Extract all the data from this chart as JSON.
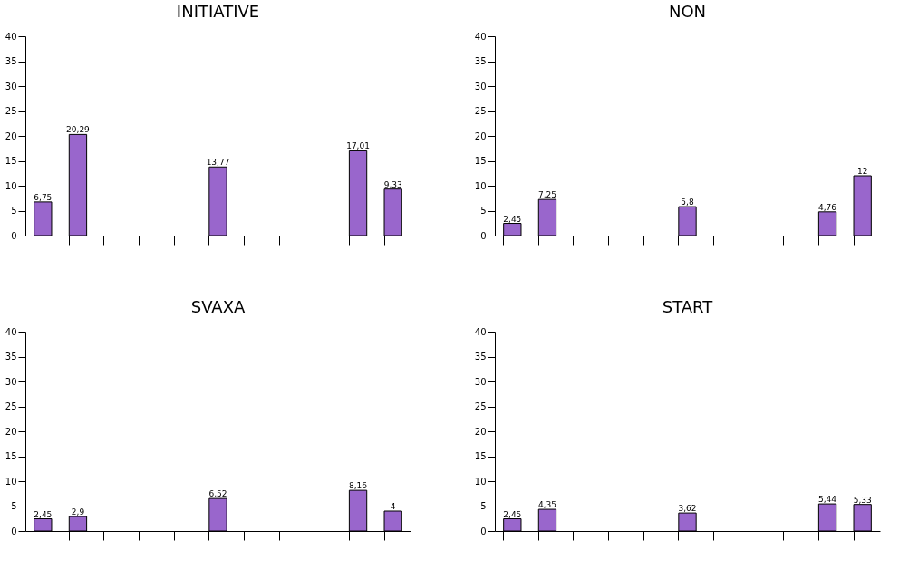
{
  "chart_data": [
    {
      "type": "bar",
      "title": "INITIATIVE",
      "categories": [
        null,
        null,
        null,
        null,
        null,
        null,
        null,
        null,
        null,
        null,
        null
      ],
      "values": [
        6.75,
        20.29,
        null,
        null,
        null,
        13.77,
        null,
        null,
        null,
        17.01,
        9.33
      ],
      "value_labels": [
        "6,75",
        "20,29",
        null,
        null,
        null,
        "13,77",
        null,
        null,
        null,
        "17,01",
        "9,33"
      ],
      "color": "#9966cc",
      "ylim": [
        0,
        40
      ],
      "yticks": [
        0,
        5,
        10,
        15,
        20,
        25,
        30,
        35,
        40
      ],
      "grid": false,
      "tick_labels": "y"
    },
    {
      "type": "bar",
      "title": "NON",
      "categories": [
        null,
        null,
        null,
        null,
        null,
        null,
        null,
        null,
        null,
        null,
        null
      ],
      "values": [
        2.45,
        7.25,
        null,
        null,
        null,
        5.8,
        null,
        null,
        null,
        4.76,
        12
      ],
      "value_labels": [
        "2,45",
        "7,25",
        null,
        null,
        null,
        "5,8",
        null,
        null,
        null,
        "4,76",
        "12"
      ],
      "color": "#9966cc",
      "ylim": [
        0,
        40
      ],
      "yticks": [
        0,
        5,
        10,
        15,
        20,
        25,
        30,
        35,
        40
      ],
      "grid": false,
      "tick_labels": "y"
    },
    {
      "type": "bar",
      "title": "SVAXA",
      "categories": [
        null,
        null,
        null,
        null,
        null,
        null,
        null,
        null,
        null,
        null,
        null
      ],
      "values": [
        2.45,
        2.9,
        null,
        null,
        null,
        6.52,
        null,
        null,
        null,
        8.16,
        4
      ],
      "value_labels": [
        "2,45",
        "2,9",
        null,
        null,
        null,
        "6,52",
        null,
        null,
        null,
        "8,16",
        "4"
      ],
      "color": "#9966cc",
      "ylim": [
        0,
        40
      ],
      "yticks": [
        0,
        5,
        10,
        15,
        20,
        25,
        30,
        35,
        40
      ],
      "grid": false,
      "tick_labels": "y"
    },
    {
      "type": "bar",
      "title": "START",
      "categories": [
        null,
        null,
        null,
        null,
        null,
        null,
        null,
        null,
        null,
        null,
        null
      ],
      "values": [
        2.45,
        4.35,
        null,
        null,
        null,
        3.62,
        null,
        null,
        null,
        5.44,
        5.33
      ],
      "value_labels": [
        "2,45",
        "4,35",
        null,
        null,
        null,
        "3,62",
        null,
        null,
        null,
        "5,44",
        "5,33"
      ],
      "color": "#9966cc",
      "ylim": [
        0,
        40
      ],
      "yticks": [
        0,
        5,
        10,
        15,
        20,
        25,
        30,
        35,
        40
      ],
      "grid": false,
      "tick_labels": "y"
    }
  ]
}
